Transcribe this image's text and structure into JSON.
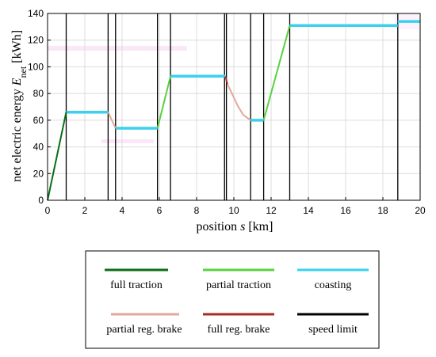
{
  "chart_data": {
    "type": "line",
    "title": "",
    "xlabel": {
      "text": "position",
      "var": "s",
      "unit": "[km]"
    },
    "ylabel": {
      "text": "net electric energy",
      "var": "E",
      "sub": "net",
      "unit": "[kWh]"
    },
    "xlim": [
      0,
      20
    ],
    "ylim": [
      0,
      140
    ],
    "xticks": [
      0,
      2,
      4,
      6,
      8,
      10,
      12,
      14,
      16,
      18,
      20
    ],
    "yticks": [
      0,
      20,
      40,
      60,
      80,
      100,
      120,
      140
    ],
    "grid": true,
    "legend_position": "below-plot",
    "legend_entries": [
      "full traction",
      "partial traction",
      "coasting",
      "partial reg. brake",
      "full reg. brake",
      "speed limit"
    ],
    "series": [
      {
        "name": "full traction",
        "color": "#0b6e17",
        "segments": [
          [
            [
              0,
              0
            ],
            [
              1.0,
              66
            ]
          ]
        ]
      },
      {
        "name": "partial traction",
        "color": "#5ad23f",
        "segments": [
          [
            [
              5.9,
              54
            ],
            [
              6.6,
              93
            ]
          ],
          [
            [
              11.6,
              60
            ],
            [
              13.0,
              131
            ]
          ]
        ]
      },
      {
        "name": "coasting",
        "color": "#39d1ef",
        "segments": [
          [
            [
              1.0,
              66
            ],
            [
              3.25,
              66
            ]
          ],
          [
            [
              3.65,
              54
            ],
            [
              5.9,
              54
            ]
          ],
          [
            [
              6.6,
              93
            ],
            [
              9.55,
              93
            ]
          ],
          [
            [
              10.9,
              60
            ],
            [
              11.6,
              60
            ]
          ],
          [
            [
              13.0,
              131
            ],
            [
              18.8,
              131
            ]
          ],
          [
            [
              18.8,
              134
            ],
            [
              20,
              134
            ]
          ]
        ]
      },
      {
        "name": "partial reg. brake",
        "color": "#e3a89b",
        "segments": [
          [
            [
              3.25,
              66
            ],
            [
              3.45,
              60
            ],
            [
              3.65,
              54
            ]
          ],
          [
            [
              9.65,
              87
            ],
            [
              9.9,
              80
            ],
            [
              10.2,
              71
            ],
            [
              10.5,
              64
            ],
            [
              10.9,
              60
            ]
          ]
        ]
      },
      {
        "name": "full reg. brake",
        "color": "#a62d27",
        "segments": [
          [
            [
              9.55,
              93
            ],
            [
              9.65,
              87
            ]
          ]
        ]
      }
    ],
    "speed_limit_positions": [
      1.0,
      3.25,
      3.65,
      5.9,
      6.6,
      9.5,
      9.6,
      10.9,
      11.6,
      13.0,
      18.8
    ],
    "speed_limit_color": "#000000"
  }
}
